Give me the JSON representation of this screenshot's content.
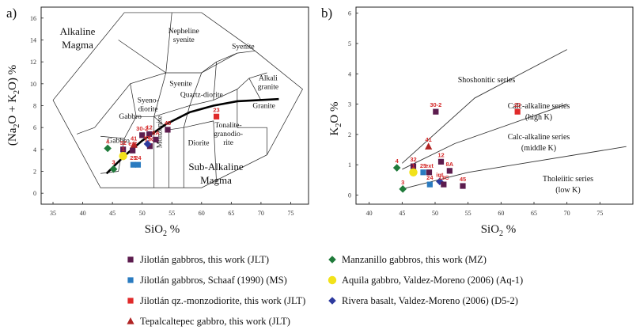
{
  "chart_data": [
    {
      "type": "scatter",
      "panel_label": "a)",
      "xlabel_main": "SiO",
      "xlabel_sub": "2",
      "xlabel_tail": " %",
      "ylabel_parts": [
        "(Na",
        "2",
        "O + K",
        "2",
        "O) %"
      ],
      "xlim": [
        33,
        78
      ],
      "ylim": [
        -1,
        17
      ],
      "xticks": [
        35,
        40,
        45,
        50,
        55,
        60,
        65,
        70,
        75
      ],
      "yticks": [
        0,
        2,
        4,
        6,
        8,
        10,
        12,
        14,
        16
      ],
      "fields": [
        "Nepheline syenite",
        "Syenite",
        "Syenite",
        "Syeno- diorite",
        "Quartz-diorite",
        "Alkali granite",
        "Granite",
        "Gabbro",
        "Gabbro",
        "Monzonite",
        "Diorite",
        "Tonalite- granodio- rite"
      ],
      "region_labels": [
        "Alkaline",
        "Magma",
        "Sub-Alkaline",
        "Magma"
      ],
      "divider_line": [
        [
          44,
          1.8
        ],
        [
          47,
          3.4
        ],
        [
          50,
          4.8
        ],
        [
          54,
          6.3
        ],
        [
          58,
          7.4
        ],
        [
          62,
          8.0
        ],
        [
          66,
          8.4
        ],
        [
          73,
          8.6
        ]
      ],
      "points": [
        {
          "label": "4",
          "x": 44.2,
          "y": 4.1,
          "group": "MZ"
        },
        {
          "label": "3",
          "x": 45.2,
          "y": 2.2,
          "group": "MZ"
        },
        {
          "label": "32",
          "x": 46.8,
          "y": 4.0,
          "group": "JLT"
        },
        {
          "label": "1",
          "x": 46.8,
          "y": 3.4,
          "group": "Aq-1"
        },
        {
          "label": "25",
          "x": 48.5,
          "y": 2.6,
          "group": "MS"
        },
        {
          "label": "24",
          "x": 49.3,
          "y": 2.6,
          "group": "MS"
        },
        {
          "label": "41",
          "x": 48.6,
          "y": 4.4,
          "group": "TEP"
        },
        {
          "label": "ext",
          "x": 48.4,
          "y": 3.9,
          "group": "JLT"
        },
        {
          "label": "30-2",
          "x": 50.0,
          "y": 5.3,
          "group": "JLT"
        },
        {
          "label": "12",
          "x": 51.2,
          "y": 5.4,
          "group": "JLT"
        },
        {
          "label": "13C",
          "x": 51.3,
          "y": 4.3,
          "group": "JLT"
        },
        {
          "label": "int",
          "x": 50.9,
          "y": 4.5,
          "group": "D5-2"
        },
        {
          "label": "8A",
          "x": 52.3,
          "y": 4.9,
          "group": "JLT"
        },
        {
          "label": "45",
          "x": 54.3,
          "y": 5.8,
          "group": "JLT"
        },
        {
          "label": "23",
          "x": 62.5,
          "y": 7.0,
          "group": "QZM"
        }
      ]
    },
    {
      "type": "scatter",
      "panel_label": "b)",
      "xlabel_main": "SiO",
      "xlabel_sub": "2",
      "xlabel_tail": " %",
      "ylabel_main": "K",
      "ylabel_sub": "2",
      "ylabel_tail": "O %",
      "xlim": [
        38,
        80
      ],
      "ylim": [
        -0.3,
        6.2
      ],
      "xticks": [
        40,
        45,
        50,
        55,
        60,
        65,
        70,
        75
      ],
      "yticks": [
        0,
        1,
        2,
        3,
        4,
        5,
        6
      ],
      "series_labels": [
        "Shoshonitic series",
        "Calc-alkaline series",
        "(high K)",
        "Calc-alkaline series",
        "(middle K)",
        "Tholeiitic series",
        "(low K)"
      ],
      "boundaries": [
        {
          "name": "shoshonitic / high-K",
          "points": [
            [
              45,
              1.05
            ],
            [
              56,
              3.2
            ],
            [
              70,
              4.8
            ]
          ]
        },
        {
          "name": "high-K / medium-K",
          "points": [
            [
              45,
              0.85
            ],
            [
              53,
              1.7
            ],
            [
              70,
              3.0
            ]
          ]
        },
        {
          "name": "medium-K / low-K",
          "points": [
            [
              45,
              0.2
            ],
            [
              55,
              0.75
            ],
            [
              79,
              1.6
            ]
          ]
        }
      ],
      "points": [
        {
          "label": "4",
          "x": 44.2,
          "y": 0.9,
          "group": "MZ"
        },
        {
          "label": "3",
          "x": 45.1,
          "y": 0.2,
          "group": "MZ"
        },
        {
          "label": "32",
          "x": 46.7,
          "y": 0.95,
          "group": "JLT"
        },
        {
          "label": "1",
          "x": 46.7,
          "y": 0.75,
          "group": "Aq-1"
        },
        {
          "label": "25",
          "x": 48.2,
          "y": 0.75,
          "group": "MS"
        },
        {
          "label": "24",
          "x": 49.2,
          "y": 0.35,
          "group": "MS"
        },
        {
          "label": "41",
          "x": 49.0,
          "y": 1.6,
          "group": "TEP"
        },
        {
          "label": "ext",
          "x": 49.1,
          "y": 0.75,
          "group": "JLT"
        },
        {
          "label": "int",
          "x": 50.7,
          "y": 0.45,
          "group": "D5-2"
        },
        {
          "label": "30-2",
          "x": 50.1,
          "y": 2.75,
          "group": "JLT"
        },
        {
          "label": "12",
          "x": 50.9,
          "y": 1.1,
          "group": "JLT"
        },
        {
          "label": "13C",
          "x": 51.3,
          "y": 0.35,
          "group": "JLT"
        },
        {
          "label": "8A",
          "x": 52.2,
          "y": 0.8,
          "group": "JLT"
        },
        {
          "label": "45",
          "x": 54.2,
          "y": 0.3,
          "group": "JLT"
        },
        {
          "label": "23",
          "x": 62.5,
          "y": 2.75,
          "group": "QZM"
        }
      ]
    }
  ],
  "legend": [
    {
      "group": "JLT",
      "text": "Jilotlán gabbros, this work (JLT)",
      "shape": "square",
      "color": "#5c1c4e"
    },
    {
      "group": "MZ",
      "text": "Manzanillo gabbros, this work (MZ)",
      "shape": "diamond",
      "color": "#1f7a3a"
    },
    {
      "group": "MS",
      "text": "Jilotlán gabbros, Schaaf (1990) (MS)",
      "shape": "square",
      "color": "#2a7bc0"
    },
    {
      "group": "Aq-1",
      "text": "Aquila gabbro, Valdez-Moreno (2006) (Aq-1)",
      "shape": "circle",
      "color": "#f2e21a"
    },
    {
      "group": "QZM",
      "text": "Jilotlán qz.-monzodiorite, this work (JLT)",
      "shape": "square",
      "color": "#e02a2a"
    },
    {
      "group": "D5-2",
      "text": "Rivera basalt, Valdez-Moreno (2006) (D5-2)",
      "shape": "diamond",
      "color": "#2d3a9e"
    },
    {
      "group": "TEP",
      "text": "Tepalcaltepec gabbro, this work (JLT)",
      "shape": "triangle",
      "color": "#b02424"
    }
  ],
  "label_color": "#d42a2a"
}
